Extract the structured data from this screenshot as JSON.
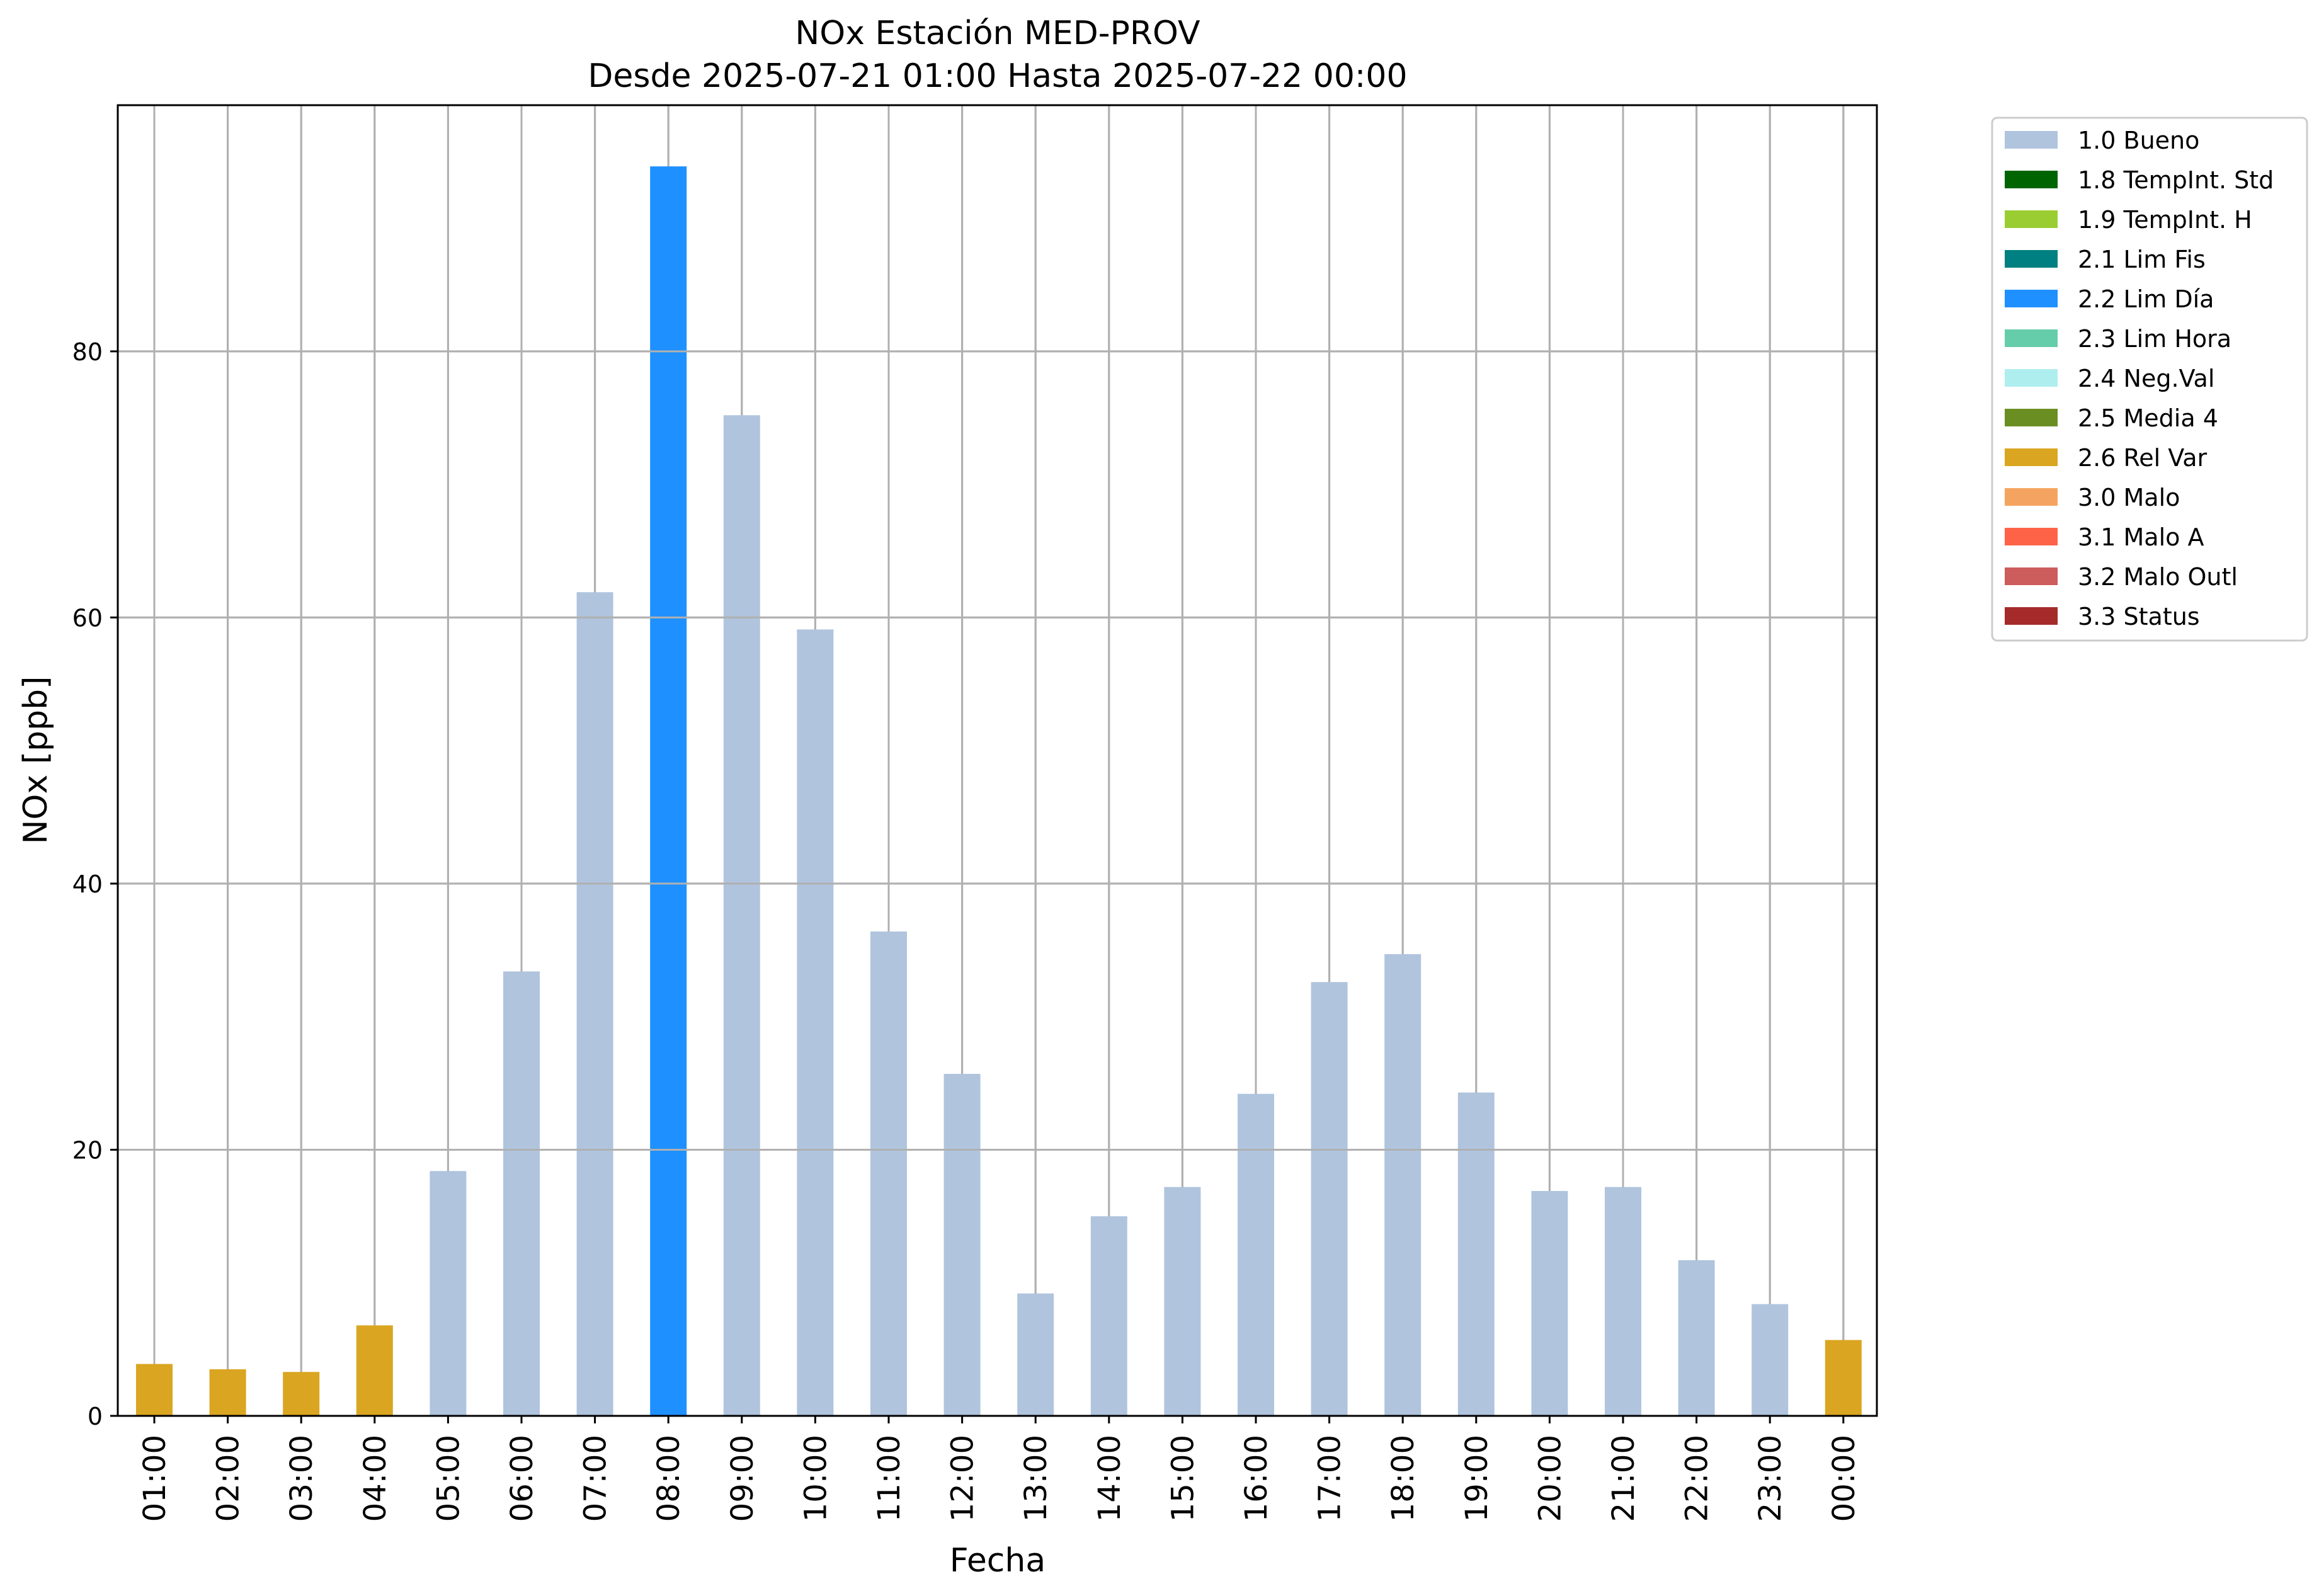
{
  "chart_data": {
    "type": "bar",
    "title": "NOx Estación MED-PROV",
    "subtitle": "Desde 2025-07-21 01:00 Hasta 2025-07-22 00:00",
    "xlabel": "Fecha",
    "ylabel": "NOx [ppb]",
    "ylim": [
      0,
      98.5
    ],
    "yticks": [
      0,
      20,
      40,
      60,
      80
    ],
    "grid": true,
    "legend_position": "outside-top-right",
    "categories": [
      "01:00",
      "02:00",
      "03:00",
      "04:00",
      "05:00",
      "06:00",
      "07:00",
      "08:00",
      "09:00",
      "10:00",
      "11:00",
      "12:00",
      "13:00",
      "14:00",
      "15:00",
      "16:00",
      "17:00",
      "18:00",
      "19:00",
      "20:00",
      "21:00",
      "22:00",
      "23:00",
      "00:00"
    ],
    "values": [
      3.9,
      3.5,
      3.3,
      6.8,
      18.4,
      33.4,
      61.9,
      93.9,
      75.2,
      59.1,
      36.4,
      25.7,
      9.2,
      15.0,
      17.2,
      24.2,
      32.6,
      34.7,
      24.3,
      16.9,
      17.2,
      11.7,
      8.4,
      5.7
    ],
    "flags": [
      "2.6 Rel Var",
      "2.6 Rel Var",
      "2.6 Rel Var",
      "2.6 Rel Var",
      "1.0 Bueno",
      "1.0 Bueno",
      "1.0 Bueno",
      "2.2 Lim Día",
      "1.0 Bueno",
      "1.0 Bueno",
      "1.0 Bueno",
      "1.0 Bueno",
      "1.0 Bueno",
      "1.0 Bueno",
      "1.0 Bueno",
      "1.0 Bueno",
      "1.0 Bueno",
      "1.0 Bueno",
      "1.0 Bueno",
      "1.0 Bueno",
      "1.0 Bueno",
      "1.0 Bueno",
      "1.0 Bueno",
      "2.6 Rel Var"
    ],
    "legend": [
      {
        "label": "1.0 Bueno",
        "color": "#b0c4de"
      },
      {
        "label": "1.8 TempInt. Std",
        "color": "#006400"
      },
      {
        "label": "1.9 TempInt. H",
        "color": "#9acd32"
      },
      {
        "label": "2.1 Lim Fis",
        "color": "#008080"
      },
      {
        "label": "2.2 Lim Día",
        "color": "#1e90ff"
      },
      {
        "label": "2.3 Lim Hora",
        "color": "#66cdaa"
      },
      {
        "label": "2.4 Neg.Val",
        "color": "#afeeee"
      },
      {
        "label": "2.5 Media 4",
        "color": "#6b8e23"
      },
      {
        "label": "2.6 Rel Var",
        "color": "#daa520"
      },
      {
        "label": "3.0 Malo",
        "color": "#f4a460"
      },
      {
        "label": "3.1 Malo A",
        "color": "#ff6347"
      },
      {
        "label": "3.2 Malo Outl",
        "color": "#cd5c5c"
      },
      {
        "label": "3.3 Status",
        "color": "#a52a2a"
      }
    ]
  }
}
